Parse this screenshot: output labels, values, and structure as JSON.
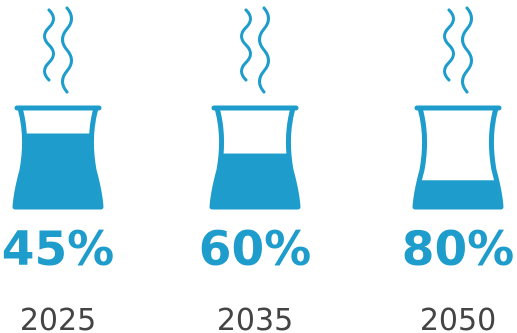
{
  "colors": {
    "accent": "#1e9ccb",
    "label": "#444444",
    "background": "#ffffff"
  },
  "chart_data": {
    "type": "bar",
    "categories": [
      "2025",
      "2035",
      "2050"
    ],
    "values": [
      45,
      60,
      80
    ],
    "value_labels": [
      "45%",
      "60%",
      "80%"
    ],
    "ylim": [
      0,
      100
    ],
    "icon": "cooling-tower-icon"
  }
}
